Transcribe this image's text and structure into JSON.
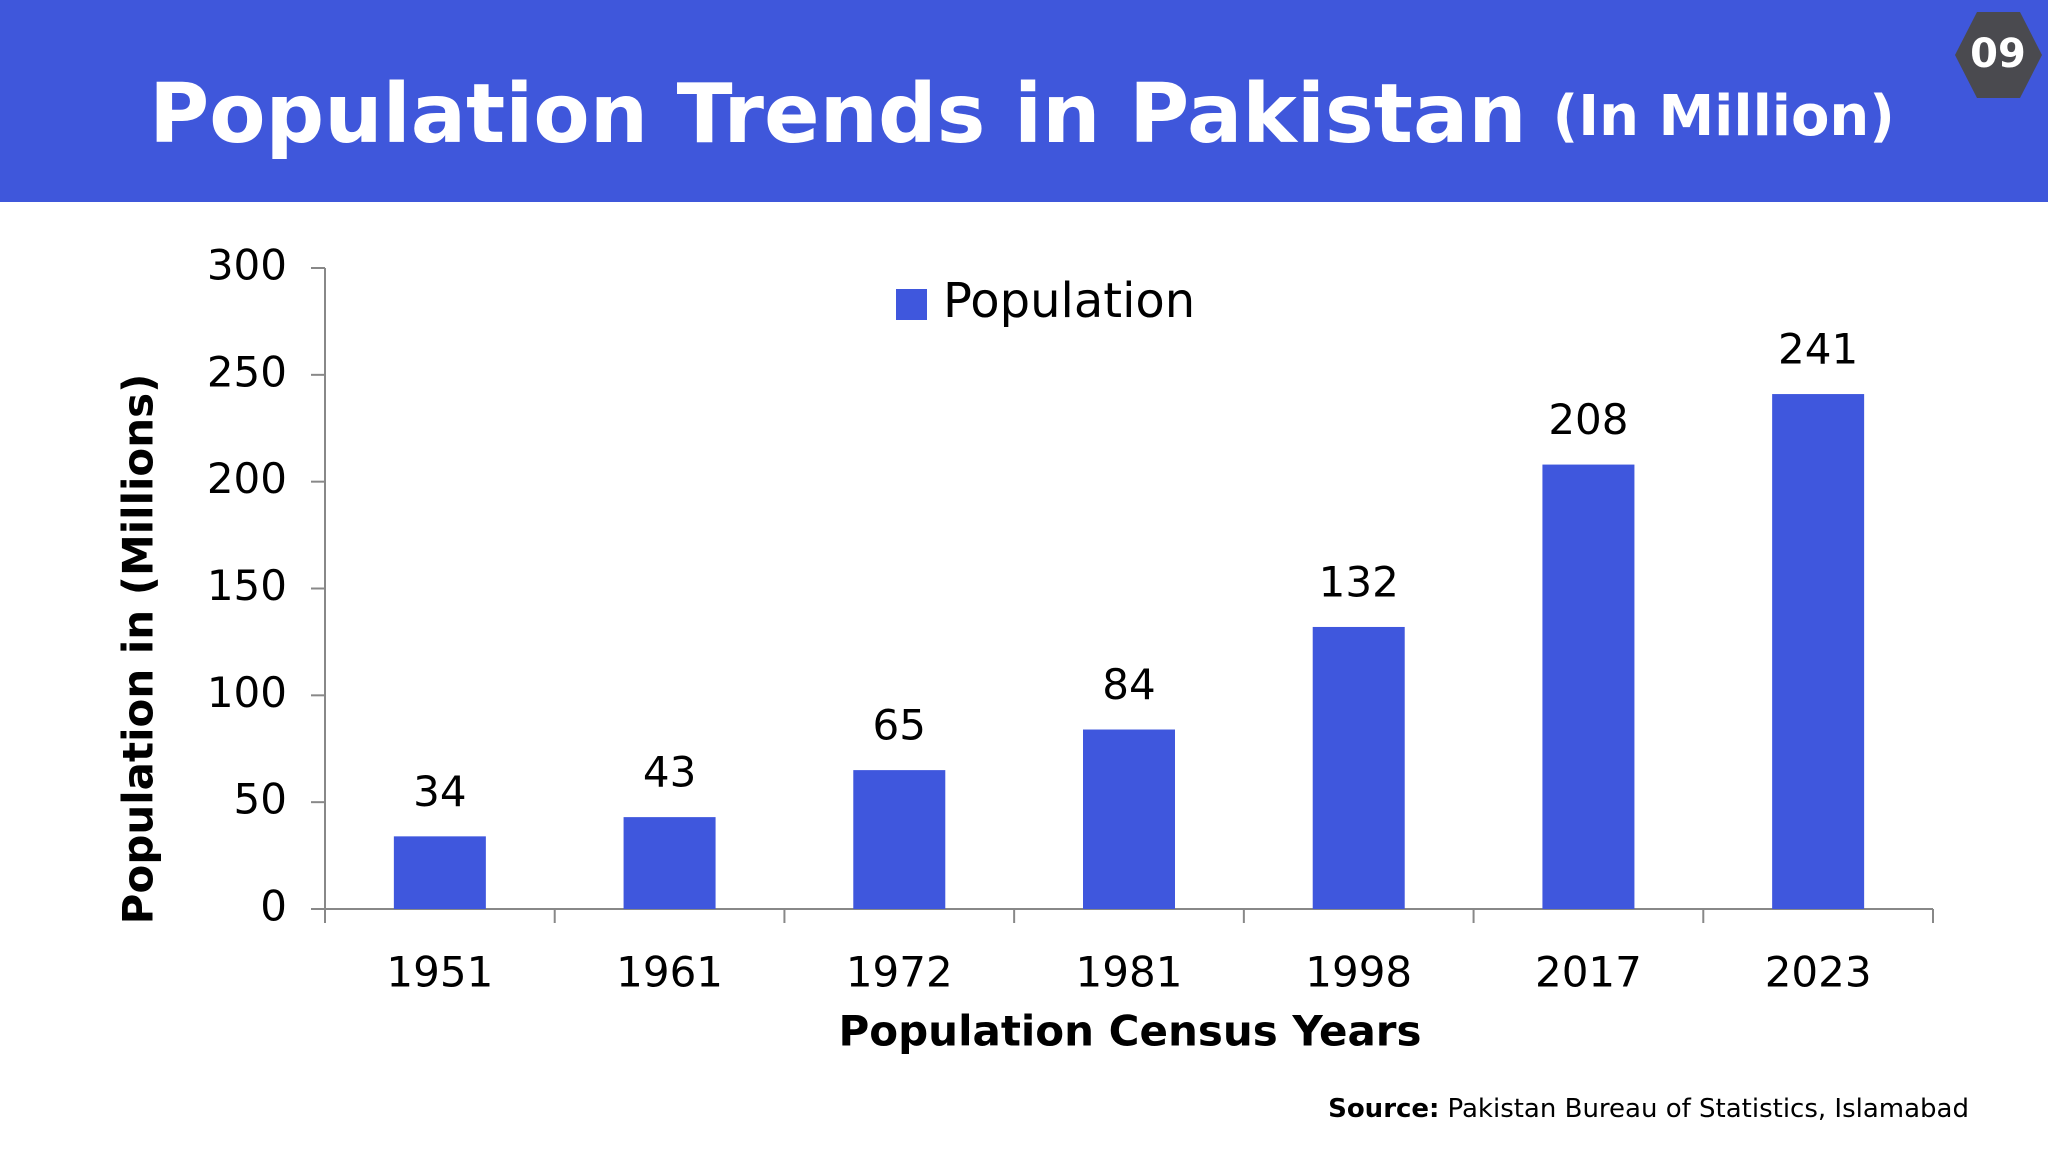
{
  "header": {
    "title": "Population Trends in Pakistan",
    "subtitle": "(In Million)",
    "badge": "09"
  },
  "chart_data": {
    "type": "bar",
    "categories": [
      "1951",
      "1961",
      "1972",
      "1981",
      "1998",
      "2017",
      "2023"
    ],
    "series": [
      {
        "name": "Population",
        "color": "#3f57dd",
        "values": [
          34,
          43,
          65,
          84,
          132,
          208,
          241
        ]
      }
    ],
    "ylim": [
      0,
      300
    ],
    "yticks": [
      0,
      50,
      100,
      150,
      200,
      250,
      300
    ],
    "y_label": "Population in (Millions)",
    "x_label": "Population Census Years",
    "legend": "top",
    "grid": false
  },
  "source": {
    "label": "Source:",
    "text": "Pakistan Bureau of Statistics, Islamabad"
  }
}
